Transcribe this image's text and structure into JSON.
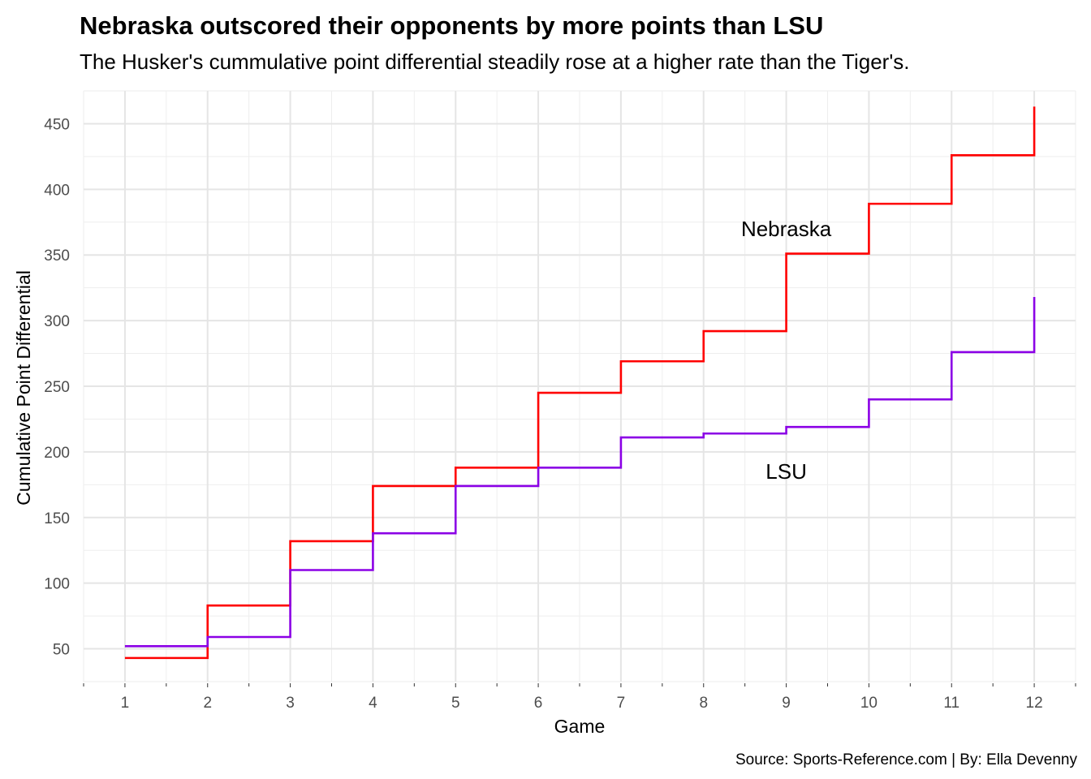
{
  "chart_data": {
    "type": "line",
    "step": true,
    "title": "Nebraska outscored their opponents by more points than LSU",
    "subtitle": "The Husker's cummulative point differential steadily rose at a higher rate than the Tiger's.",
    "xlabel": "Game",
    "ylabel": "Cumulative Point Differential",
    "caption": "Source: Sports-Reference.com | By: Ella Devenny",
    "x": [
      1,
      2,
      3,
      4,
      5,
      6,
      7,
      8,
      9,
      10,
      11,
      12
    ],
    "xlim": [
      0.5,
      12.5
    ],
    "ylim": [
      25,
      475
    ],
    "x_ticks": [
      "1",
      "2",
      "3",
      "4",
      "5",
      "6",
      "7",
      "8",
      "9",
      "10",
      "11",
      "12"
    ],
    "y_ticks": [
      "50",
      "100",
      "150",
      "200",
      "250",
      "300",
      "350",
      "400",
      "450"
    ],
    "grid": true,
    "legend": "none",
    "series": [
      {
        "name": "Nebraska",
        "color": "#ff0000",
        "values": [
          43,
          83,
          132,
          174,
          188,
          245,
          269,
          292,
          351,
          389,
          426,
          463
        ]
      },
      {
        "name": "LSU",
        "color": "#8b00e6",
        "values": [
          52,
          59,
          110,
          138,
          174,
          188,
          211,
          214,
          219,
          240,
          276,
          318
        ]
      }
    ],
    "annotations": [
      {
        "text": "Nebraska",
        "x": 9,
        "y": 370
      },
      {
        "text": "LSU",
        "x": 9,
        "y": 185
      }
    ]
  }
}
